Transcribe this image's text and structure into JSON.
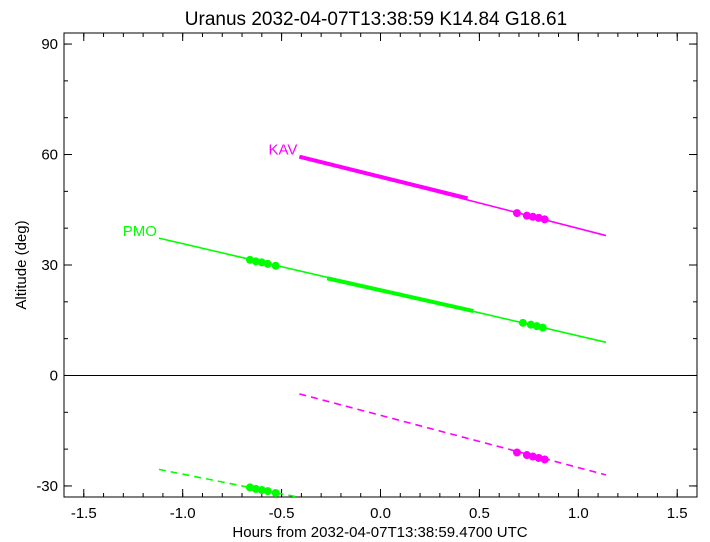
{
  "chart_data": {
    "type": "line",
    "title": "Uranus 2032-04-07T13:38:59  K14.84  G18.61",
    "xlabel": "Hours from 2032-04-07T13:38:59.4700 UTC",
    "ylabel": "Altitude (deg)",
    "xlim": [
      -1.6,
      1.6
    ],
    "ylim": [
      -33,
      93
    ],
    "xticks": [
      "-1.5",
      "-1.0",
      "-0.5",
      "0.0",
      "0.5",
      "1.0",
      "1.5"
    ],
    "yticks": [
      "-30",
      "0",
      "30",
      "60",
      "90"
    ],
    "zero_line": true,
    "grid": false,
    "series": [
      {
        "name": "KAV",
        "color": "#ff00ff",
        "label_at": [
          -0.42,
          59.4
        ],
        "line": {
          "x": [
            -0.41,
            1.14
          ],
          "y": [
            59.4,
            38.0
          ]
        },
        "thick": {
          "x": [
            -0.41,
            0.44
          ],
          "y": [
            59.4,
            48.1
          ]
        },
        "dots": {
          "x": [
            0.69,
            0.74,
            0.77,
            0.8,
            0.83
          ],
          "y": [
            44.1,
            43.4,
            43.1,
            42.8,
            42.4
          ]
        },
        "below_line": {
          "x": [
            -0.41,
            1.14
          ],
          "y": [
            -5.0,
            -27.0
          ]
        },
        "below_dots": {
          "x": [
            0.69,
            0.74,
            0.77,
            0.8,
            0.83
          ],
          "y": [
            -20.9,
            -21.6,
            -22.0,
            -22.4,
            -22.8
          ]
        }
      },
      {
        "name": "PMO",
        "color": "#00ff00",
        "label_at": [
          -1.13,
          37.3
        ],
        "line": {
          "x": [
            -1.12,
            1.14
          ],
          "y": [
            37.3,
            9.0
          ]
        },
        "thick": {
          "x": [
            -0.27,
            0.47
          ],
          "y": [
            26.4,
            17.5
          ]
        },
        "dots": {
          "x": [
            -0.66,
            -0.63,
            -0.6,
            -0.57,
            -0.53,
            0.72,
            0.76,
            0.79,
            0.82
          ],
          "y": [
            31.4,
            31.0,
            30.7,
            30.3,
            29.8,
            14.3,
            13.8,
            13.4,
            13.0
          ]
        },
        "below_line": {
          "x": [
            -1.12,
            -0.42
          ],
          "y": [
            -25.5,
            -33.0
          ]
        },
        "below_dots": {
          "x": [
            -0.66,
            -0.63,
            -0.6,
            -0.57,
            -0.53
          ],
          "y": [
            -30.4,
            -30.8,
            -31.1,
            -31.4,
            -31.9
          ]
        }
      }
    ]
  }
}
